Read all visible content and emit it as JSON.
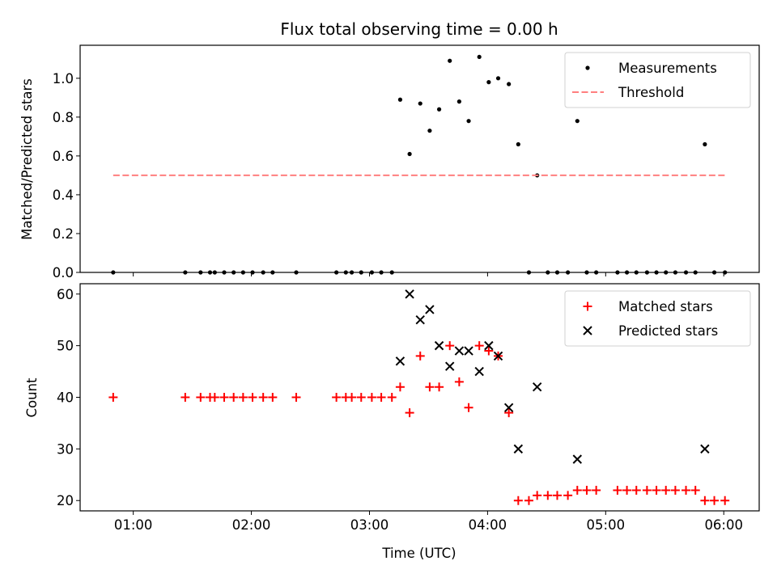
{
  "chart_data": [
    {
      "type": "scatter",
      "title": "Flux total observing time = 0.00 h",
      "xlabel": "",
      "ylabel": "Matched/Predicted stars",
      "xlim": [
        0.55,
        6.3
      ],
      "ylim": [
        0.0,
        1.17
      ],
      "yticks": [
        0.0,
        0.2,
        0.4,
        0.6,
        0.8,
        1.0
      ],
      "ytick_labels": [
        "0.0",
        "0.2",
        "0.4",
        "0.6",
        "0.8",
        "1.0"
      ],
      "legend": {
        "position": "top-right",
        "entries": [
          "Measurements",
          "Threshold"
        ]
      },
      "series": [
        {
          "name": "Measurements",
          "kind": "dots",
          "color": "#000000",
          "points": [
            [
              0.83,
              0.0
            ],
            [
              1.44,
              0.0
            ],
            [
              1.57,
              0.0
            ],
            [
              1.65,
              0.0
            ],
            [
              1.69,
              0.0
            ],
            [
              1.77,
              0.0
            ],
            [
              1.85,
              0.0
            ],
            [
              1.93,
              0.0
            ],
            [
              2.01,
              0.0
            ],
            [
              2.1,
              0.0
            ],
            [
              2.18,
              0.0
            ],
            [
              2.38,
              0.0
            ],
            [
              2.72,
              0.0
            ],
            [
              2.8,
              0.0
            ],
            [
              2.85,
              0.0
            ],
            [
              2.93,
              0.0
            ],
            [
              3.02,
              0.0
            ],
            [
              3.1,
              0.0
            ],
            [
              3.19,
              0.0
            ],
            [
              3.26,
              0.89
            ],
            [
              3.34,
              0.61
            ],
            [
              3.43,
              0.87
            ],
            [
              3.51,
              0.73
            ],
            [
              3.59,
              0.84
            ],
            [
              3.68,
              1.09
            ],
            [
              3.76,
              0.88
            ],
            [
              3.84,
              0.78
            ],
            [
              3.93,
              1.11
            ],
            [
              4.01,
              0.98
            ],
            [
              4.09,
              1.0
            ],
            [
              4.18,
              0.97
            ],
            [
              4.26,
              0.66
            ],
            [
              4.35,
              0.0
            ],
            [
              4.42,
              0.5
            ],
            [
              4.51,
              0.0
            ],
            [
              4.59,
              0.0
            ],
            [
              4.68,
              0.0
            ],
            [
              4.76,
              0.78
            ],
            [
              4.84,
              0.0
            ],
            [
              4.92,
              0.0
            ],
            [
              5.1,
              0.0
            ],
            [
              5.18,
              0.0
            ],
            [
              5.26,
              0.0
            ],
            [
              5.35,
              0.0
            ],
            [
              5.43,
              0.0
            ],
            [
              5.51,
              0.0
            ],
            [
              5.59,
              0.0
            ],
            [
              5.68,
              0.0
            ],
            [
              5.76,
              0.0
            ],
            [
              5.84,
              0.66
            ],
            [
              5.92,
              0.0
            ],
            [
              6.01,
              0.0
            ]
          ]
        },
        {
          "name": "Threshold",
          "kind": "dashed-line",
          "color": "#ff7f7f",
          "points": [
            [
              0.83,
              0.5
            ],
            [
              6.01,
              0.5
            ]
          ]
        }
      ]
    },
    {
      "type": "scatter",
      "title": "",
      "xlabel": "Time (UTC)",
      "ylabel": "Count",
      "xlim": [
        0.55,
        6.3
      ],
      "ylim": [
        18,
        62
      ],
      "xticks": [
        1,
        2,
        3,
        4,
        5,
        6
      ],
      "xtick_labels": [
        "01:00",
        "02:00",
        "03:00",
        "04:00",
        "05:00",
        "06:00"
      ],
      "yticks": [
        20,
        30,
        40,
        50,
        60
      ],
      "ytick_labels": [
        "20",
        "30",
        "40",
        "50",
        "60"
      ],
      "legend": {
        "position": "top-right",
        "entries": [
          "Matched stars",
          "Predicted stars"
        ]
      },
      "series": [
        {
          "name": "Matched stars",
          "kind": "plus",
          "color": "#ff0000",
          "points": [
            [
              0.83,
              40
            ],
            [
              1.44,
              40
            ],
            [
              1.57,
              40
            ],
            [
              1.65,
              40
            ],
            [
              1.69,
              40
            ],
            [
              1.77,
              40
            ],
            [
              1.85,
              40
            ],
            [
              1.93,
              40
            ],
            [
              2.01,
              40
            ],
            [
              2.1,
              40
            ],
            [
              2.18,
              40
            ],
            [
              2.38,
              40
            ],
            [
              2.72,
              40
            ],
            [
              2.8,
              40
            ],
            [
              2.85,
              40
            ],
            [
              2.93,
              40
            ],
            [
              3.02,
              40
            ],
            [
              3.1,
              40
            ],
            [
              3.19,
              40
            ],
            [
              3.26,
              42
            ],
            [
              3.34,
              37
            ],
            [
              3.43,
              48
            ],
            [
              3.51,
              42
            ],
            [
              3.59,
              42
            ],
            [
              3.68,
              50
            ],
            [
              3.76,
              43
            ],
            [
              3.84,
              38
            ],
            [
              3.93,
              50
            ],
            [
              4.01,
              49
            ],
            [
              4.09,
              48
            ],
            [
              4.18,
              37
            ],
            [
              4.26,
              20
            ],
            [
              4.35,
              20
            ],
            [
              4.42,
              21
            ],
            [
              4.51,
              21
            ],
            [
              4.59,
              21
            ],
            [
              4.68,
              21
            ],
            [
              4.76,
              22
            ],
            [
              4.84,
              22
            ],
            [
              4.92,
              22
            ],
            [
              5.1,
              22
            ],
            [
              5.18,
              22
            ],
            [
              5.26,
              22
            ],
            [
              5.35,
              22
            ],
            [
              5.43,
              22
            ],
            [
              5.51,
              22
            ],
            [
              5.59,
              22
            ],
            [
              5.68,
              22
            ],
            [
              5.76,
              22
            ],
            [
              5.84,
              20
            ],
            [
              5.92,
              20
            ],
            [
              6.01,
              20
            ]
          ]
        },
        {
          "name": "Predicted stars",
          "kind": "x",
          "color": "#000000",
          "points": [
            [
              3.26,
              47
            ],
            [
              3.34,
              60
            ],
            [
              3.43,
              55
            ],
            [
              3.51,
              57
            ],
            [
              3.59,
              50
            ],
            [
              3.68,
              46
            ],
            [
              3.76,
              49
            ],
            [
              3.84,
              49
            ],
            [
              3.93,
              45
            ],
            [
              4.01,
              50
            ],
            [
              4.09,
              48
            ],
            [
              4.18,
              38
            ],
            [
              4.26,
              30
            ],
            [
              4.42,
              42
            ],
            [
              4.76,
              28
            ],
            [
              5.84,
              30
            ]
          ]
        }
      ]
    }
  ]
}
